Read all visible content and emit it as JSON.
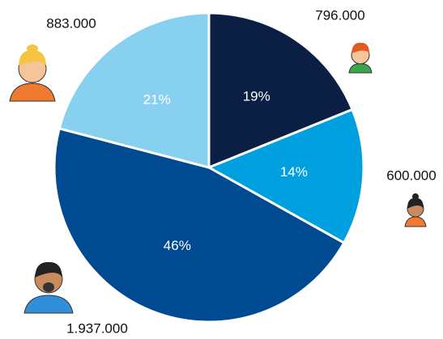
{
  "chart_data": {
    "type": "pie",
    "values": [
      796000,
      600000,
      1937000,
      883000
    ],
    "value_labels": [
      "796.000",
      "600.000",
      "1.937.000",
      "883.000"
    ],
    "slice_labels": [
      "19%",
      "14%",
      "46%",
      "21%"
    ],
    "colors": [
      "#0b1f45",
      "#009fe0",
      "#004a91",
      "#88d0f0"
    ]
  }
}
